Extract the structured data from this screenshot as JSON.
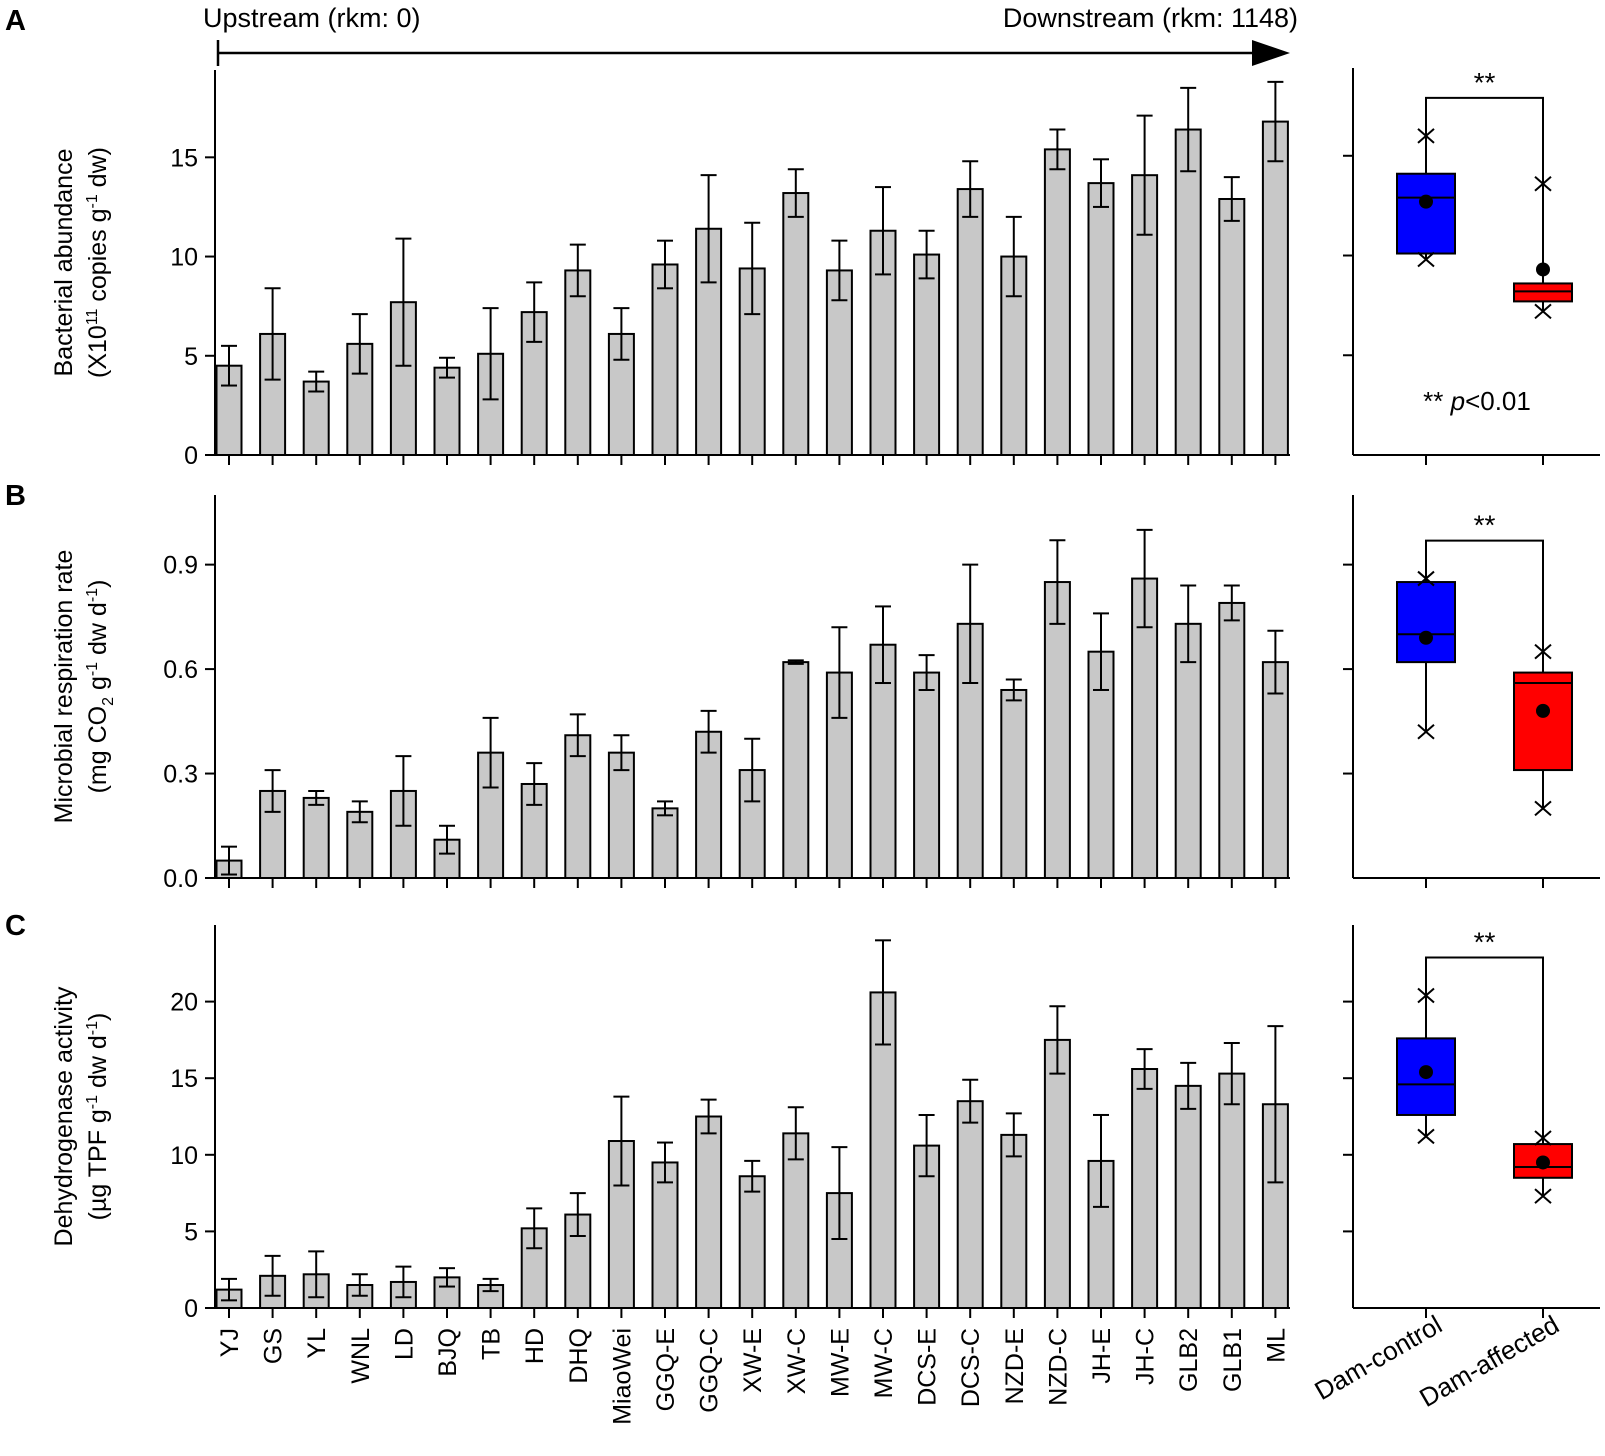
{
  "figure": {
    "arrow": {
      "left_label": "Upstream (rkm: 0)",
      "right_label": "Downstream (rkm: 1148)"
    },
    "sites": [
      "YJ",
      "GS",
      "YL",
      "WNL",
      "LD",
      "BJQ",
      "TB",
      "HD",
      "DHQ",
      "MiaoWei",
      "GGQ-E",
      "GGQ-C",
      "XW-E",
      "XW-C",
      "MW-E",
      "MW-C",
      "DCS-E",
      "DCS-C",
      "NZD-E",
      "NZD-C",
      "JH-E",
      "JH-C",
      "GLB2",
      "GLB1",
      "ML"
    ],
    "box_categories": [
      "Dam-control",
      "Dam-affected"
    ],
    "significance": "**",
    "pvalue_note": {
      "stars": "**",
      "p": "p",
      "rest": "<0.01"
    }
  },
  "chart_data": [
    {
      "type": "bar",
      "panel_label": "A",
      "ylabel_line1": "Bacterial abundance",
      "ylabel_line2": {
        "pre": "(X10",
        "sup": "11",
        "post": " copies g",
        "sup2": "-1",
        "post2": " dw)"
      },
      "ylim": [
        0,
        19.4
      ],
      "yticks": [
        0,
        5,
        10,
        15
      ],
      "tick_labels": [
        "0",
        "5",
        "10",
        "15"
      ],
      "values": [
        4.5,
        6.1,
        3.7,
        5.6,
        7.7,
        4.4,
        5.1,
        7.2,
        9.3,
        6.1,
        9.6,
        11.4,
        9.4,
        13.2,
        9.3,
        11.3,
        10.1,
        13.4,
        10.0,
        15.4,
        13.7,
        14.1,
        16.4,
        12.9,
        16.8
      ],
      "errors": [
        1.0,
        2.3,
        0.5,
        1.5,
        3.2,
        0.5,
        2.3,
        1.5,
        1.3,
        1.3,
        1.2,
        2.7,
        2.3,
        1.2,
        1.5,
        2.2,
        1.2,
        1.4,
        2.0,
        1.0,
        1.2,
        3.0,
        2.1,
        1.1,
        2.0
      ]
    },
    {
      "type": "bar",
      "panel_label": "B",
      "ylabel_line1": "Microbial respiration rate",
      "ylabel_line2": {
        "pre": "(mg CO",
        "sub": "2",
        "post": " g",
        "sup": "-1",
        "post2": " dw d",
        "sup2": "-1",
        "post3": ")"
      },
      "ylim": [
        0,
        1.1
      ],
      "yticks": [
        0,
        0.3,
        0.6,
        0.9
      ],
      "tick_labels": [
        "0.0",
        "0.3",
        "0.6",
        "0.9"
      ],
      "values": [
        0.05,
        0.25,
        0.23,
        0.19,
        0.25,
        0.11,
        0.36,
        0.27,
        0.41,
        0.36,
        0.2,
        0.42,
        0.31,
        0.62,
        0.59,
        0.67,
        0.59,
        0.73,
        0.54,
        0.85,
        0.65,
        0.86,
        0.73,
        0.79,
        0.62
      ],
      "errors": [
        0.04,
        0.06,
        0.02,
        0.03,
        0.1,
        0.04,
        0.1,
        0.06,
        0.06,
        0.05,
        0.02,
        0.06,
        0.09,
        0.005,
        0.13,
        0.11,
        0.05,
        0.17,
        0.03,
        0.12,
        0.11,
        0.14,
        0.11,
        0.05,
        0.09
      ]
    },
    {
      "type": "bar",
      "panel_label": "C",
      "ylabel_line1": "Dehydrogenase activity",
      "ylabel_line2": {
        "pre": "(µg TPF g",
        "sup": "-1",
        "post": " dw d",
        "sup2": "-1",
        "post2": ")"
      },
      "ylim": [
        0,
        25
      ],
      "yticks": [
        0,
        5,
        10,
        15,
        20
      ],
      "tick_labels": [
        "0",
        "5",
        "10",
        "15",
        "20"
      ],
      "values": [
        1.2,
        2.1,
        2.2,
        1.5,
        1.7,
        2.0,
        1.5,
        5.2,
        6.1,
        10.9,
        9.5,
        12.5,
        8.6,
        11.4,
        7.5,
        20.6,
        10.6,
        13.5,
        11.3,
        17.5,
        9.6,
        15.6,
        14.5,
        15.3,
        13.3
      ],
      "errors": [
        0.7,
        1.3,
        1.5,
        0.7,
        1.0,
        0.6,
        0.4,
        1.3,
        1.4,
        2.9,
        1.3,
        1.1,
        1.0,
        1.7,
        3.0,
        3.4,
        2.0,
        1.4,
        1.4,
        2.2,
        3.0,
        1.3,
        1.5,
        2.0,
        5.1
      ]
    },
    {
      "type": "box",
      "panel": "A",
      "ylim": [
        0,
        19.4
      ],
      "yticks": [
        5,
        10,
        15
      ],
      "boxes": [
        {
          "name": "Dam-control",
          "color": "#0000ff",
          "q1": 10.1,
          "median": 12.9,
          "q3": 14.1,
          "mean": 12.7,
          "min": 9.8,
          "max": 16.0
        },
        {
          "name": "Dam-affected",
          "color": "#ff0000",
          "q1": 7.7,
          "median": 8.2,
          "q3": 8.6,
          "mean": 9.3,
          "min": 7.2,
          "max": 13.6
        }
      ]
    },
    {
      "type": "box",
      "panel": "B",
      "ylim": [
        0,
        1.1
      ],
      "yticks": [
        0.3,
        0.6,
        0.9
      ],
      "boxes": [
        {
          "name": "Dam-control",
          "color": "#0000ff",
          "q1": 0.62,
          "median": 0.7,
          "q3": 0.85,
          "mean": 0.69,
          "min": 0.42,
          "max": 0.86
        },
        {
          "name": "Dam-affected",
          "color": "#ff0000",
          "q1": 0.31,
          "median": 0.56,
          "q3": 0.59,
          "mean": 0.48,
          "min": 0.2,
          "max": 0.65
        }
      ]
    },
    {
      "type": "box",
      "panel": "C",
      "ylim": [
        0,
        25
      ],
      "yticks": [
        5,
        10,
        15,
        20
      ],
      "boxes": [
        {
          "name": "Dam-control",
          "color": "#0000ff",
          "q1": 12.6,
          "median": 14.6,
          "q3": 17.6,
          "mean": 15.4,
          "min": 11.2,
          "max": 20.4
        },
        {
          "name": "Dam-affected",
          "color": "#ff0000",
          "q1": 8.5,
          "median": 9.2,
          "q3": 10.7,
          "mean": 9.5,
          "min": 7.3,
          "max": 11.1
        }
      ]
    }
  ]
}
